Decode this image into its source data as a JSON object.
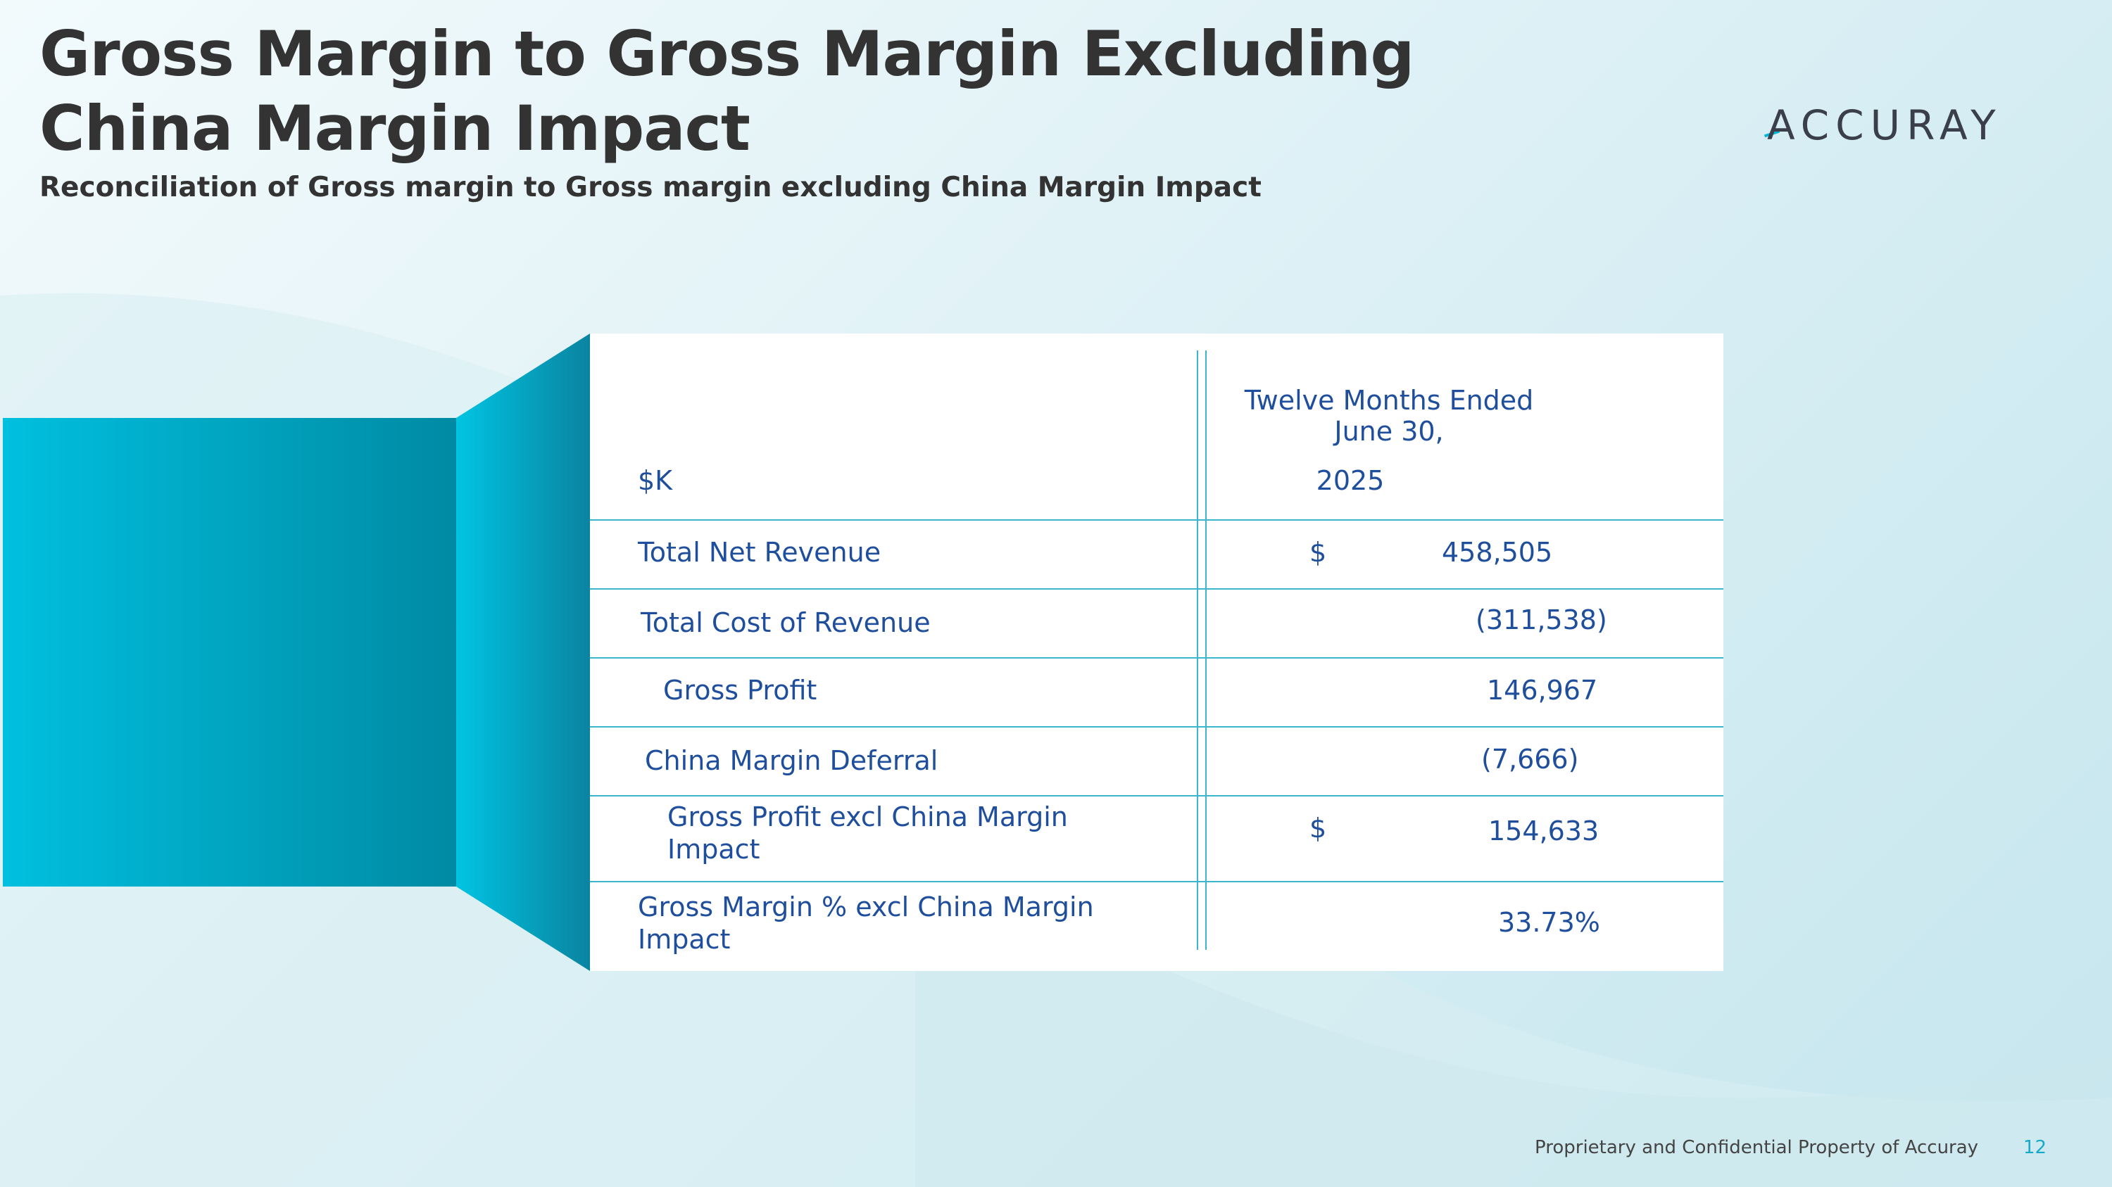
{
  "slide": {
    "title": "Gross Margin to Gross Margin Excluding China Margin Impact",
    "subtitle": "Reconciliation of Gross margin to Gross margin excluding China Margin Impact",
    "logo_text": "ACCURAY"
  },
  "table": {
    "header_unit": "$K",
    "header_period_line1": "Twelve Months Ended",
    "header_period_line2": "June 30,",
    "header_year": "2025",
    "rows": [
      {
        "label": "Total Net Revenue",
        "currency": "$",
        "value": "458,505"
      },
      {
        "label": "Total Cost of Revenue",
        "currency": "",
        "value": "(311,538)"
      },
      {
        "label": "Gross Profit",
        "currency": "",
        "value": "146,967"
      },
      {
        "label": "China Margin Deferral",
        "currency": "",
        "value": "(7,666)"
      },
      {
        "label_line1": "Gross Profit excl China Margin",
        "label_line2": "Impact",
        "currency": "$",
        "value": "154,633"
      },
      {
        "label_line1": "Gross Margin % excl China Margin",
        "label_line2": "Impact",
        "currency": "",
        "value": "33.73%"
      }
    ]
  },
  "footer": {
    "text": "Proprietary and Confidential Property of Accuray",
    "page_number": "12"
  },
  "colors": {
    "title": "#333333",
    "table_text": "#1f4e9c",
    "rule": "#3bb6cc",
    "accent": "#00b4d8",
    "page_number": "#19a9c8"
  }
}
